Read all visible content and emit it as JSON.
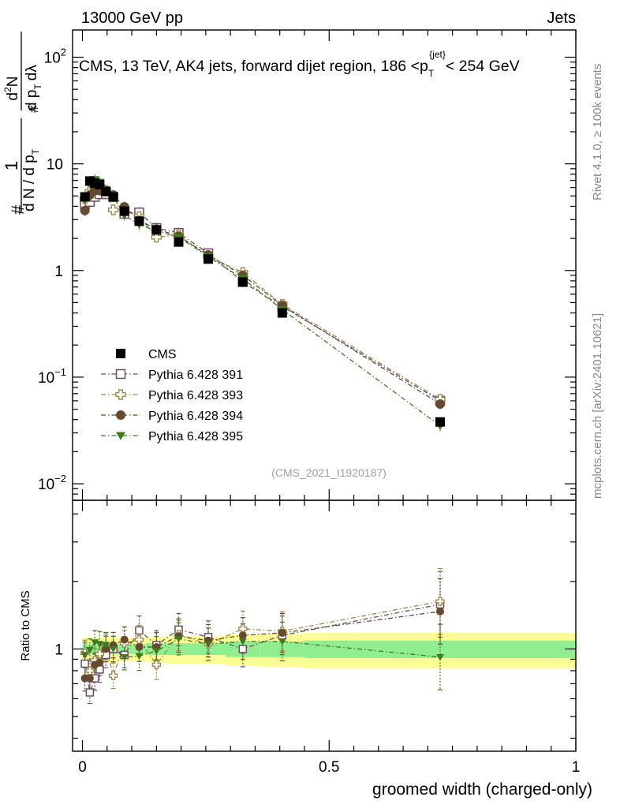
{
  "header": {
    "left": "13000 GeV pp",
    "right": "Jets"
  },
  "side": {
    "rivet": "Rivet 4.1.0, ≥ 100k events",
    "mcplots": "mcplots.cern.ch [arXiv:2401.10621]"
  },
  "chart_data": {
    "type": "scatter",
    "title": "CMS, 13 TeV, AK4 jets, forward dijet region, 186 <p_T^{jet}< 254 GeV",
    "title_parts": {
      "main": "CMS, 13 TeV, AK4 jets, forward dijet region, 186 <p",
      "sub": "T",
      "sup": "{jet}",
      "tail": "< 254 GeV"
    },
    "ylabel_upper": "1/(dN/dp_T) d²N/(dp_T dλ)",
    "ylabel_parts": {
      "hash": "#",
      "one": "1",
      "denom": "d N / d p",
      "denom_sub": "T",
      "hash2": "#",
      "num": "d",
      "num_sup": "2",
      "num_n": "N",
      "den2": "d p",
      "den2_sub": "T",
      "den2_tail": "dλ"
    },
    "ylabel_ratio": "Ratio to CMS",
    "xlabel": "groomed width (charged-only)",
    "xlim": [
      -0.02,
      1.0
    ],
    "ylim_upper": [
      0.007,
      180
    ],
    "ylim_ratio": [
      0.35,
      4.6
    ],
    "x_ticks": [
      {
        "value": 0,
        "label": "0"
      },
      {
        "value": 0.5,
        "label": "0.5"
      },
      {
        "value": 1,
        "label": "1"
      }
    ],
    "y_ticks_upper": [
      {
        "value": 0.01,
        "base": "10",
        "exp": "−2"
      },
      {
        "value": 0.1,
        "base": "10",
        "exp": "−1"
      },
      {
        "value": 1,
        "base": "1",
        "exp": ""
      },
      {
        "value": 10,
        "base": "10",
        "exp": ""
      },
      {
        "value": 100,
        "base": "10",
        "exp": "2"
      }
    ],
    "y_ticks_ratio": [
      {
        "value": 1,
        "label": "1"
      }
    ],
    "watermark": "(CMS_2021_I1920187)",
    "bins": [
      0.0,
      0.01,
      0.02,
      0.03,
      0.04,
      0.055,
      0.07,
      0.1,
      0.13,
      0.17,
      0.22,
      0.29,
      0.36,
      0.45,
      1.0
    ],
    "ratio_band_inner": [
      0.06,
      0.05,
      0.05,
      0.05,
      0.06,
      0.05,
      0.05,
      0.05,
      0.06,
      0.06,
      0.06,
      0.08,
      0.08,
      0.09
    ],
    "ratio_band_outer": [
      0.13,
      0.12,
      0.12,
      0.12,
      0.13,
      0.13,
      0.12,
      0.12,
      0.13,
      0.14,
      0.14,
      0.16,
      0.17,
      0.18
    ],
    "series": [
      {
        "name": "CMS",
        "marker": "square-filled",
        "color": "#000000",
        "x": [
          0.005,
          0.015,
          0.025,
          0.035,
          0.0475,
          0.0625,
          0.085,
          0.115,
          0.15,
          0.195,
          0.255,
          0.325,
          0.405,
          0.725
        ],
        "y": [
          4.9,
          6.9,
          6.6,
          6.4,
          5.5,
          4.9,
          3.6,
          2.9,
          2.4,
          1.85,
          1.28,
          0.78,
          0.4,
          0.038
        ]
      },
      {
        "name": "Pythia 6.428 391",
        "marker": "square-open",
        "color": "#6e4e5e",
        "x": [
          0.005,
          0.015,
          0.025,
          0.035,
          0.0475,
          0.0625,
          0.085,
          0.115,
          0.15,
          0.195,
          0.255,
          0.325,
          0.405,
          0.725
        ],
        "y": [
          4.2,
          4.4,
          4.9,
          5.2,
          5.2,
          4.9,
          3.4,
          3.5,
          2.5,
          2.25,
          1.45,
          0.78,
          0.46,
          0.06
        ],
        "ratio": [
          0.86,
          0.64,
          0.74,
          0.81,
          0.94,
          1.0,
          0.94,
          1.21,
          1.04,
          1.22,
          1.13,
          1.0,
          1.15,
          1.58
        ],
        "ratio_err": [
          0.14,
          0.12,
          0.13,
          0.14,
          0.14,
          0.14,
          0.14,
          0.16,
          0.16,
          0.18,
          0.18,
          0.2,
          0.22,
          0.4
        ]
      },
      {
        "name": "Pythia 6.428 393",
        "marker": "cross-open",
        "color": "#9c8a4c",
        "x": [
          0.005,
          0.015,
          0.025,
          0.035,
          0.0475,
          0.0625,
          0.085,
          0.115,
          0.15,
          0.195,
          0.255,
          0.325,
          0.405,
          0.725
        ],
        "y": [
          4.7,
          5.5,
          5.9,
          6.1,
          5.6,
          3.7,
          3.8,
          3.2,
          2.05,
          2.15,
          1.35,
          0.96,
          0.48,
          0.062
        ],
        "ratio": [
          0.96,
          0.8,
          0.89,
          0.95,
          1.02,
          0.76,
          1.06,
          1.1,
          0.85,
          1.16,
          1.05,
          1.23,
          1.2,
          1.63
        ],
        "ratio_err": [
          0.14,
          0.12,
          0.13,
          0.14,
          0.14,
          0.14,
          0.14,
          0.16,
          0.16,
          0.18,
          0.18,
          0.2,
          0.22,
          0.4
        ]
      },
      {
        "name": "Pythia 6.428 394",
        "marker": "circle-filled",
        "color": "#654a2e",
        "x": [
          0.005,
          0.015,
          0.025,
          0.035,
          0.0475,
          0.0625,
          0.085,
          0.115,
          0.15,
          0.195,
          0.255,
          0.325,
          0.405,
          0.725
        ],
        "y": [
          3.65,
          5.1,
          5.6,
          5.6,
          5.5,
          5.1,
          3.95,
          2.95,
          2.45,
          2.1,
          1.4,
          0.9,
          0.47,
          0.056
        ],
        "ratio": [
          0.74,
          0.74,
          0.85,
          0.87,
          1.0,
          1.04,
          1.1,
          1.02,
          1.02,
          1.14,
          1.09,
          1.15,
          1.18,
          1.47
        ],
        "ratio_err": [
          0.14,
          0.12,
          0.13,
          0.14,
          0.14,
          0.14,
          0.14,
          0.16,
          0.16,
          0.18,
          0.18,
          0.2,
          0.22,
          0.4
        ]
      },
      {
        "name": "Pythia 6.428 395",
        "marker": "triangle-down-filled",
        "color": "#3f7a1c",
        "x": [
          0.005,
          0.015,
          0.025,
          0.035,
          0.0475,
          0.0625,
          0.085,
          0.115,
          0.15,
          0.195,
          0.255,
          0.325,
          0.405,
          0.725
        ],
        "y": [
          4.6,
          6.9,
          7.1,
          6.7,
          5.7,
          4.9,
          3.3,
          2.7,
          2.35,
          2.05,
          1.35,
          0.84,
          0.43,
          0.035
        ],
        "ratio": [
          0.94,
          0.99,
          1.07,
          1.05,
          1.04,
          1.0,
          0.92,
          0.93,
          0.98,
          1.11,
          1.05,
          1.08,
          1.08,
          0.92
        ],
        "ratio_err": [
          0.14,
          0.12,
          0.13,
          0.14,
          0.14,
          0.14,
          0.14,
          0.16,
          0.16,
          0.18,
          0.18,
          0.2,
          0.22,
          0.4
        ]
      }
    ]
  }
}
